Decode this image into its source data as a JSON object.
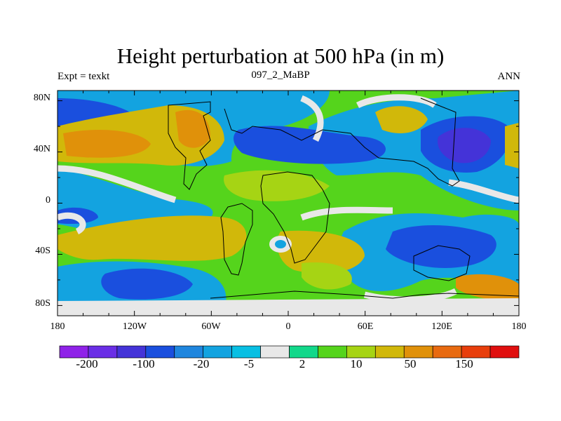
{
  "title": "Height perturbation at 500 hPa (in m)",
  "left_string": "Expt = texkt",
  "center_string": "097_2_MaBP",
  "right_string": "ANN",
  "lat_labels": [
    "80N",
    "40N",
    "0",
    "40S",
    "80S"
  ],
  "lon_labels": [
    "180",
    "120W",
    "60W",
    "0",
    "60E",
    "120E",
    "180"
  ],
  "colorbar": {
    "colors": [
      "#8f22e8",
      "#6a2ee6",
      "#4433d8",
      "#1a4fde",
      "#1f86de",
      "#13a3e0",
      "#08bfe3",
      "#e8e8e8",
      "#12d88a",
      "#55d41c",
      "#a6d414",
      "#d1b80a",
      "#e0910a",
      "#e86a10",
      "#e83e0c",
      "#e00f0f"
    ],
    "labels": [
      "-200",
      "-100",
      "-20",
      "-5",
      "2",
      "10",
      "50",
      "150"
    ]
  }
}
